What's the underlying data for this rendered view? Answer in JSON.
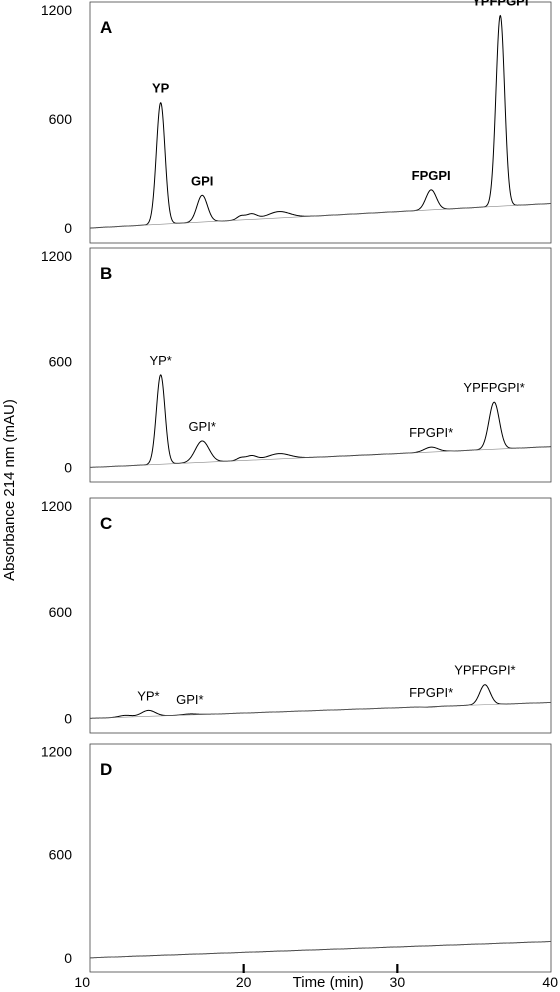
{
  "chart_data": {
    "type": "line",
    "y_axis_label": "Absorbance 214 nm (mAU)",
    "x_axis_label": "Time (min)",
    "x_ticks": [
      10,
      20,
      30,
      40
    ],
    "xlim": [
      10,
      40
    ],
    "ylim": [
      0,
      1200
    ],
    "y_ticks": [
      0,
      600,
      1200
    ],
    "panels": [
      {
        "id": "A",
        "bold_labels": true,
        "baseline_start": 0,
        "baseline_end": 135,
        "bumps": [
          {
            "t": 19.8,
            "h": 20,
            "w": 0.25
          },
          {
            "t": 20.5,
            "h": 30,
            "w": 0.35
          },
          {
            "t": 22.3,
            "h": 35,
            "w": 0.7
          }
        ],
        "peaks": [
          {
            "name": "YP",
            "time": 14.6,
            "height": 690
          },
          {
            "name": "GPI",
            "time": 17.3,
            "height": 180
          },
          {
            "name": "FPGPI",
            "time": 32.2,
            "height": 210
          },
          {
            "name": "YPFPGPI",
            "time": 36.7,
            "height": 1170
          }
        ]
      },
      {
        "id": "B",
        "bold_labels": false,
        "baseline_start": 0,
        "baseline_end": 118,
        "bumps": [
          {
            "t": 19.8,
            "h": 15,
            "w": 0.25
          },
          {
            "t": 20.5,
            "h": 25,
            "w": 0.35
          },
          {
            "t": 22.3,
            "h": 30,
            "w": 0.7
          }
        ],
        "peaks": [
          {
            "name": "YP*",
            "time": 14.6,
            "height": 525
          },
          {
            "name": "GPI*",
            "time": 17.3,
            "height": 150
          },
          {
            "name": "FPGPI*",
            "time": 32.2,
            "height": 115
          },
          {
            "name": "YPFPGPI*",
            "time": 36.3,
            "height": 370
          }
        ]
      },
      {
        "id": "C",
        "bold_labels": false,
        "baseline_start": 0,
        "baseline_end": 90,
        "bumps": [
          {
            "t": 12.3,
            "h": 10,
            "w": 0.4
          }
        ],
        "peaks": [
          {
            "name": "YP*",
            "time": 13.8,
            "height": 45
          },
          {
            "name": "GPI*",
            "time": 16.5,
            "height": 25
          },
          {
            "name": "FPGPI*",
            "time": 32.2,
            "height": 65
          },
          {
            "name": "YPFPGPI*",
            "time": 35.7,
            "height": 190
          }
        ]
      },
      {
        "id": "D",
        "bold_labels": false,
        "baseline_start": 0,
        "baseline_end": 95,
        "bumps": [],
        "peaks": []
      }
    ]
  }
}
